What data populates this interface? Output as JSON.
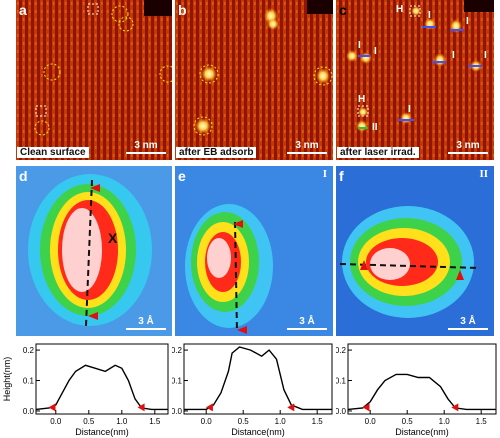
{
  "panels": {
    "a": {
      "label": "a",
      "caption": "Clean surface",
      "scale": "3 nm"
    },
    "b": {
      "label": "b",
      "caption": "after EB adsorb",
      "scale": "3 nm"
    },
    "c": {
      "label": "c",
      "caption": "after laser irrad.",
      "scale": "3 nm",
      "marks": [
        "H",
        "I",
        "I",
        "I",
        "I",
        "I",
        "I",
        "H",
        "I",
        "II"
      ]
    },
    "d": {
      "label": "d",
      "scale": "3 Å",
      "marker": "X"
    },
    "e": {
      "label": "e",
      "scale": "3 Å",
      "tag": "I"
    },
    "f": {
      "label": "f",
      "scale": "3 Å",
      "tag": "II"
    }
  },
  "plots": {
    "ylabel": "Height(nm)",
    "xlabel": "Distance(nm)",
    "yticks": [
      "0.0",
      "0.1",
      "0.2"
    ],
    "xticks": [
      "0.0",
      "0.5",
      "1.0",
      "1.5"
    ]
  },
  "chart_data": [
    {
      "type": "line",
      "x": [
        -0.3,
        -0.1,
        0.0,
        0.1,
        0.2,
        0.3,
        0.45,
        0.6,
        0.75,
        0.9,
        1.0,
        1.1,
        1.2,
        1.3,
        1.45,
        1.7
      ],
      "y": [
        0.005,
        0.01,
        0.02,
        0.06,
        0.1,
        0.13,
        0.15,
        0.14,
        0.13,
        0.15,
        0.14,
        0.1,
        0.04,
        0.01,
        0.005,
        0.005
      ],
      "xlim": [
        -0.3,
        1.7
      ],
      "ylim": [
        -0.01,
        0.22
      ],
      "xlabel": "Distance(nm)",
      "ylabel": "Height(nm)"
    },
    {
      "type": "line",
      "x": [
        -0.3,
        0.0,
        0.1,
        0.2,
        0.3,
        0.35,
        0.45,
        0.6,
        0.75,
        0.85,
        0.95,
        1.05,
        1.15,
        1.3,
        1.7
      ],
      "y": [
        0.005,
        0.005,
        0.02,
        0.06,
        0.13,
        0.19,
        0.21,
        0.2,
        0.18,
        0.2,
        0.17,
        0.07,
        0.02,
        0.005,
        0.005
      ],
      "xlim": [
        -0.3,
        1.7
      ],
      "ylim": [
        -0.01,
        0.22
      ],
      "xlabel": "Distance(nm)"
    },
    {
      "type": "line",
      "x": [
        -0.3,
        -0.1,
        0.0,
        0.1,
        0.2,
        0.35,
        0.5,
        0.65,
        0.8,
        0.95,
        1.05,
        1.15,
        1.3,
        1.7
      ],
      "y": [
        0.005,
        0.01,
        0.03,
        0.07,
        0.1,
        0.12,
        0.12,
        0.11,
        0.11,
        0.08,
        0.04,
        0.01,
        0.005,
        0.005
      ],
      "xlim": [
        -0.3,
        1.7
      ],
      "ylim": [
        -0.01,
        0.22
      ],
      "xlabel": "Distance(nm)"
    }
  ]
}
